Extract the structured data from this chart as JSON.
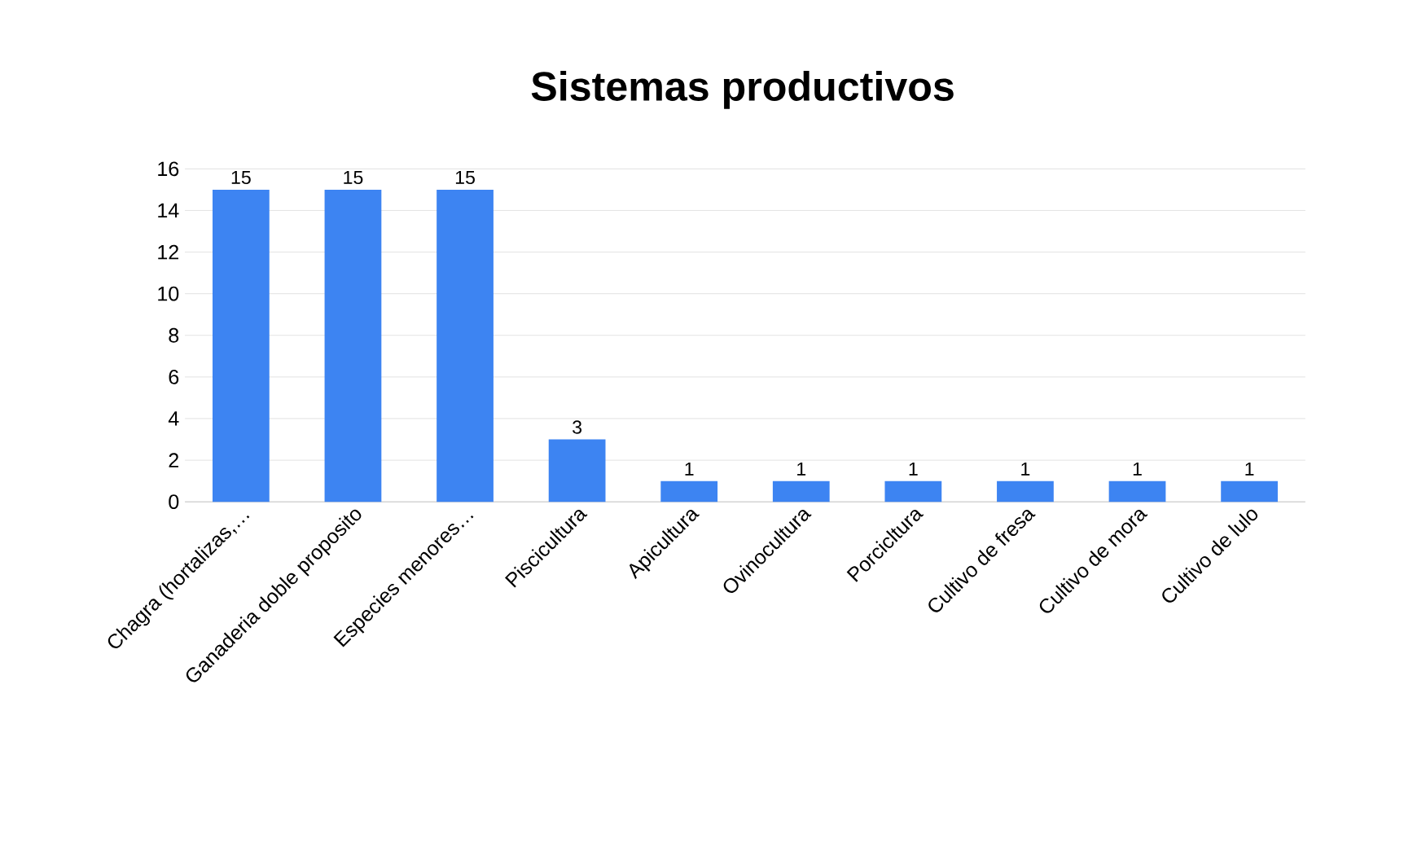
{
  "chart_data": {
    "type": "bar",
    "title": "Sistemas productivos",
    "categories": [
      "Chagra (hortalizas,…",
      "Ganaderia doble proposito",
      "Especies menores…",
      "Piscicultura",
      "Apicultura",
      "Ovinocultura",
      "Porcicltura",
      "Cultivo de fresa",
      "Cultivo de mora",
      "Cultivo de lulo"
    ],
    "values": [
      15,
      15,
      15,
      3,
      1,
      1,
      1,
      1,
      1,
      1
    ],
    "color": "#3d84f2",
    "ylim": [
      0,
      16
    ],
    "yticks": [
      0,
      2,
      4,
      6,
      8,
      10,
      12,
      14,
      16
    ],
    "grid": "y",
    "data_labels": true
  }
}
